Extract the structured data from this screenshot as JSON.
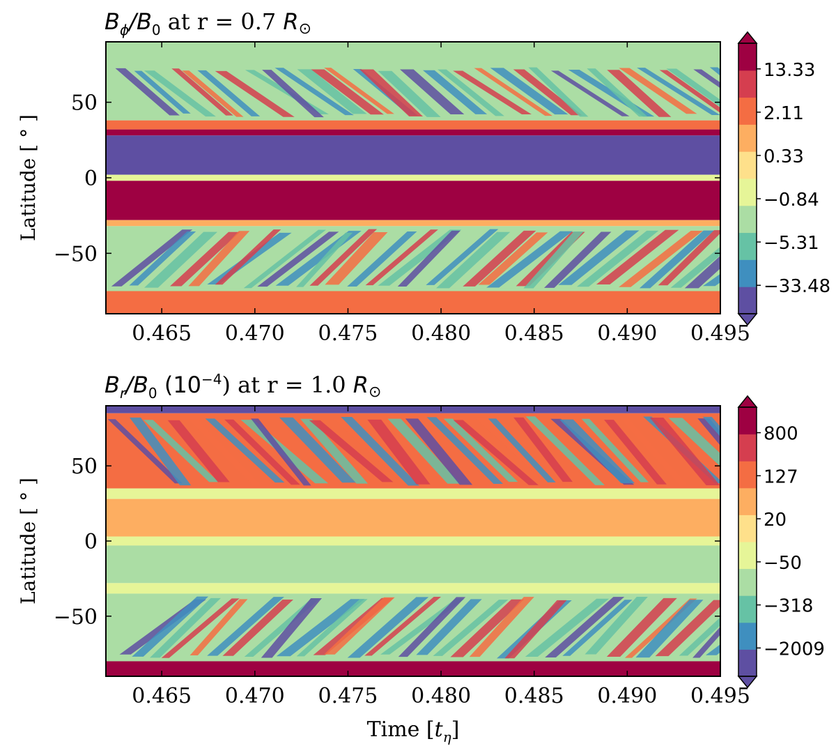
{
  "chart_data": [
    {
      "type": "heatmap",
      "title_parts": {
        "sym": "B",
        "sub": "ϕ",
        "mid": "/B",
        "sub2": "0",
        "rest": " at r = 0.7 ",
        "unit": "R",
        "sun": "⊙"
      },
      "title": "Bϕ/B0 at r = 0.7 R⊙",
      "xlabel": "",
      "ylabel": "Latitude [ ° ]",
      "xlim": [
        0.462,
        0.495
      ],
      "ylim": [
        -90,
        90
      ],
      "xticks": [
        "0.465",
        "0.470",
        "0.475",
        "0.480",
        "0.485",
        "0.490",
        "0.495"
      ],
      "xtick_values": [
        0.465,
        0.47,
        0.475,
        0.48,
        0.485,
        0.49,
        0.495
      ],
      "yticks": [
        "50",
        "0",
        "−50"
      ],
      "ytick_values": [
        50,
        0,
        -50
      ],
      "colorbar_ticks": [
        "13.33",
        "2.11",
        "0.33",
        "−0.84",
        "−5.31",
        "−33.48"
      ],
      "colorbar_levels": 10,
      "colormap": "Spectral_r",
      "bands": [
        {
          "lat_from": 75,
          "lat_to": 90,
          "level": 3
        },
        {
          "lat_from": 38,
          "lat_to": 75,
          "level": 3,
          "wavy": true
        },
        {
          "lat_from": 32,
          "lat_to": 38,
          "level": 7
        },
        {
          "lat_from": 28,
          "lat_to": 32,
          "level": 9
        },
        {
          "lat_from": 2,
          "lat_to": 28,
          "level": 0
        },
        {
          "lat_from": -2,
          "lat_to": 2,
          "level": 4
        },
        {
          "lat_from": -28,
          "lat_to": -2,
          "level": 9
        },
        {
          "lat_from": -32,
          "lat_to": -28,
          "level": 6
        },
        {
          "lat_from": -75,
          "lat_to": -32,
          "level": 3,
          "wavy": true
        },
        {
          "lat_from": -90,
          "lat_to": -75,
          "level": 7
        }
      ]
    },
    {
      "type": "heatmap",
      "title_parts": {
        "sym": "B",
        "sub": "r",
        "mid": "/B",
        "sub2": "0",
        "rest": " (10",
        "sup": "−4",
        "rest2": ") at r = 1.0 ",
        "unit": "R",
        "sun": "⊙"
      },
      "title": "Br/B0 (10−4) at r = 1.0 R⊙",
      "xlabel": "Time [tη]",
      "xlabel_parts": {
        "text": "Time [",
        "sym": "t",
        "sub": "η",
        "end": "]"
      },
      "ylabel": "Latitude [ ° ]",
      "xlim": [
        0.462,
        0.495
      ],
      "ylim": [
        -90,
        90
      ],
      "xticks": [
        "0.465",
        "0.470",
        "0.475",
        "0.480",
        "0.485",
        "0.490",
        "0.495"
      ],
      "xtick_values": [
        0.465,
        0.47,
        0.475,
        0.48,
        0.485,
        0.49,
        0.495
      ],
      "yticks": [
        "50",
        "0",
        "−50"
      ],
      "ytick_values": [
        50,
        0,
        -50
      ],
      "colorbar_ticks": [
        "800",
        "127",
        "20",
        "−50",
        "−318",
        "−2009"
      ],
      "colorbar_levels": 10,
      "colormap": "Spectral_r",
      "bands": [
        {
          "lat_from": 85,
          "lat_to": 90,
          "level": 0
        },
        {
          "lat_from": 35,
          "lat_to": 85,
          "level": 7,
          "wavy": true
        },
        {
          "lat_from": 28,
          "lat_to": 35,
          "level": 4
        },
        {
          "lat_from": 3,
          "lat_to": 28,
          "level": 6
        },
        {
          "lat_from": -3,
          "lat_to": 3,
          "level": 4
        },
        {
          "lat_from": -28,
          "lat_to": -3,
          "level": 3
        },
        {
          "lat_from": -35,
          "lat_to": -28,
          "level": 4
        },
        {
          "lat_from": -80,
          "lat_to": -35,
          "level": 3,
          "wavy": true
        },
        {
          "lat_from": -90,
          "lat_to": -80,
          "level": 9
        }
      ]
    }
  ],
  "colors": {
    "spectral": [
      "#5e4fa2",
      "#3f8fbf",
      "#66c2a5",
      "#abdda4",
      "#e6f598",
      "#fee08b",
      "#fdae61",
      "#f46d43",
      "#d53e4f",
      "#9e0142"
    ],
    "axis": "#000000"
  }
}
